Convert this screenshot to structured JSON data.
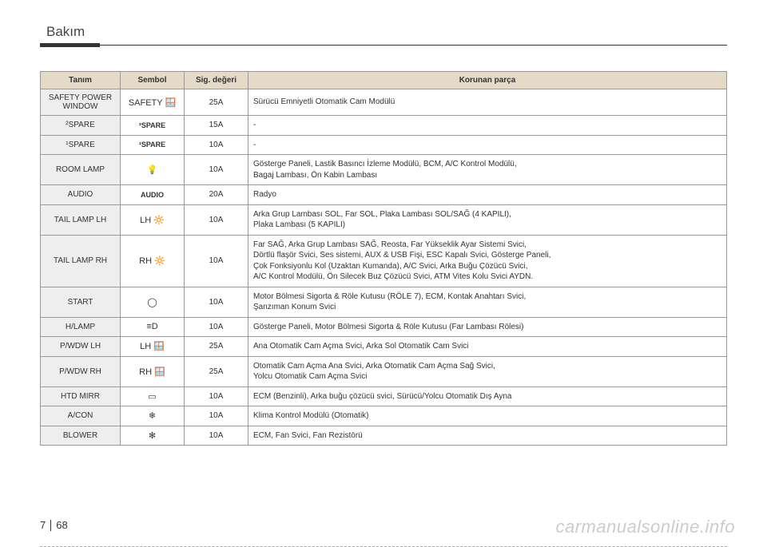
{
  "header": {
    "title": "Bakım"
  },
  "table": {
    "columns": [
      "Tanım",
      "Sembol",
      "Sig. değeri",
      "Korunan parça"
    ],
    "rows": [
      {
        "def": "SAFETY POWER WINDOW",
        "sym": "SAFETY 🪟",
        "val": "25A",
        "desc": "Sürücü Emniyetli Otomatik Cam Modülü"
      },
      {
        "def": "²SPARE",
        "sym": "²SPARE",
        "val": "15A",
        "desc": "-"
      },
      {
        "def": "¹SPARE",
        "sym": "¹SPARE",
        "val": "10A",
        "desc": "-"
      },
      {
        "def": "ROOM LAMP",
        "sym": "💡",
        "val": "10A",
        "desc": "Gösterge Paneli, Lastik Basıncı İzleme Modülü, BCM, A/C Kontrol Modülü,\nBagaj Lambası, Ön Kabin Lambası"
      },
      {
        "def": "AUDIO",
        "sym": "AUDIO",
        "val": "20A",
        "desc": "Radyo"
      },
      {
        "def": "TAIL LAMP LH",
        "sym": "LH 🔆",
        "val": "10A",
        "desc": "Arka Grup Lambası SOL, Far SOL, Plaka Lambası SOL/SAĞ (4 KAPILI),\nPlaka Lambası (5 KAPILI)"
      },
      {
        "def": "TAIL LAMP RH",
        "sym": "RH 🔆",
        "val": "10A",
        "desc": "Far SAĞ, Arka Grup Lambası SAĞ, Reosta, Far Yükseklik Ayar Sistemi Svici,\nDörtlü flaşör Svici, Ses sistemi, AUX & USB Fişi, ESC Kapalı Svici, Gösterge Paneli,\nÇok Fonksiyonlu Kol (Uzaktan Kumanda), A/C Svici, Arka Buğu Çözücü Svici,\nA/C Kontrol Modülü, Ön Silecek Buz Çözücü Svici, ATM Vites Kolu Svici AYDN."
      },
      {
        "def": "START",
        "sym": "◯",
        "val": "10A",
        "desc": "Motor Bölmesi Sigorta & Röle Kutusu (RÖLE 7), ECM, Kontak Anahtarı Svici,\nŞanzıman Konum Svici"
      },
      {
        "def": "H/LAMP",
        "sym": "≡D",
        "val": "10A",
        "desc": "Gösterge Paneli, Motor Bölmesi Sigorta & Röle Kutusu (Far Lambası Rölesi)"
      },
      {
        "def": "P/WDW LH",
        "sym": "LH 🪟",
        "val": "25A",
        "desc": "Ana Otomatik Cam Açma Svici, Arka Sol Otomatik Cam Svici"
      },
      {
        "def": "P/WDW RH",
        "sym": "RH 🪟",
        "val": "25A",
        "desc": "Otomatik Cam Açma Ana Svici, Arka Otomatik Cam Açma Sağ Svici,\nYolcu Otomatik Cam Açma Svici"
      },
      {
        "def": "HTD MIRR",
        "sym": "▭",
        "val": "10A",
        "desc": "ECM (Benzinli), Arka buğu çözücü svici, Sürücü/Yolcu Otomatik Dış Ayna"
      },
      {
        "def": "A/CON",
        "sym": "❄",
        "val": "10A",
        "desc": "Klima Kontrol Modülü (Otomatik)"
      },
      {
        "def": "BLOWER",
        "sym": "✻",
        "val": "10A",
        "desc": "ECM, Fan Svici, Fan Rezistörü"
      }
    ]
  },
  "footer": {
    "chapter": "7",
    "page": "68"
  },
  "watermark": "carmanualsonline.info"
}
